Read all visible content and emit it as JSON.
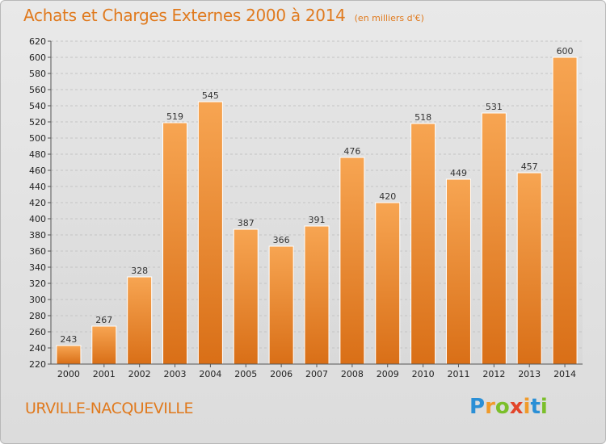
{
  "title": "Achats et Charges Externes 2000 à 2014",
  "unit_note": "(en milliers d'€)",
  "location": "URVILLE-NACQUEVILLE",
  "brand": {
    "letters": [
      "P",
      "r",
      "o",
      "x",
      "i",
      "t",
      "i"
    ],
    "colors": [
      "#2a8fd6",
      "#f09a2a",
      "#7bbf2a",
      "#e2452a",
      "#f09a2a",
      "#2a8fd6",
      "#7bbf2a"
    ]
  },
  "colors": {
    "accent": "#e07a1e",
    "bar_top": "#f7a552",
    "bar_bottom": "#d96f17"
  },
  "chart_data": {
    "type": "bar",
    "title": "Achats et Charges Externes 2000 à 2014",
    "categories": [
      "2000",
      "2001",
      "2002",
      "2003",
      "2004",
      "2005",
      "2006",
      "2007",
      "2008",
      "2009",
      "2010",
      "2011",
      "2012",
      "2013",
      "2014"
    ],
    "values": [
      243,
      267,
      328,
      519,
      545,
      387,
      366,
      391,
      476,
      420,
      518,
      449,
      531,
      457,
      600
    ],
    "ylim": [
      220,
      620
    ],
    "yticks": [
      220,
      240,
      260,
      280,
      300,
      320,
      340,
      360,
      380,
      400,
      420,
      440,
      460,
      480,
      500,
      520,
      540,
      560,
      580,
      600,
      620
    ],
    "grid": true,
    "xlabel": "",
    "ylabel": ""
  }
}
